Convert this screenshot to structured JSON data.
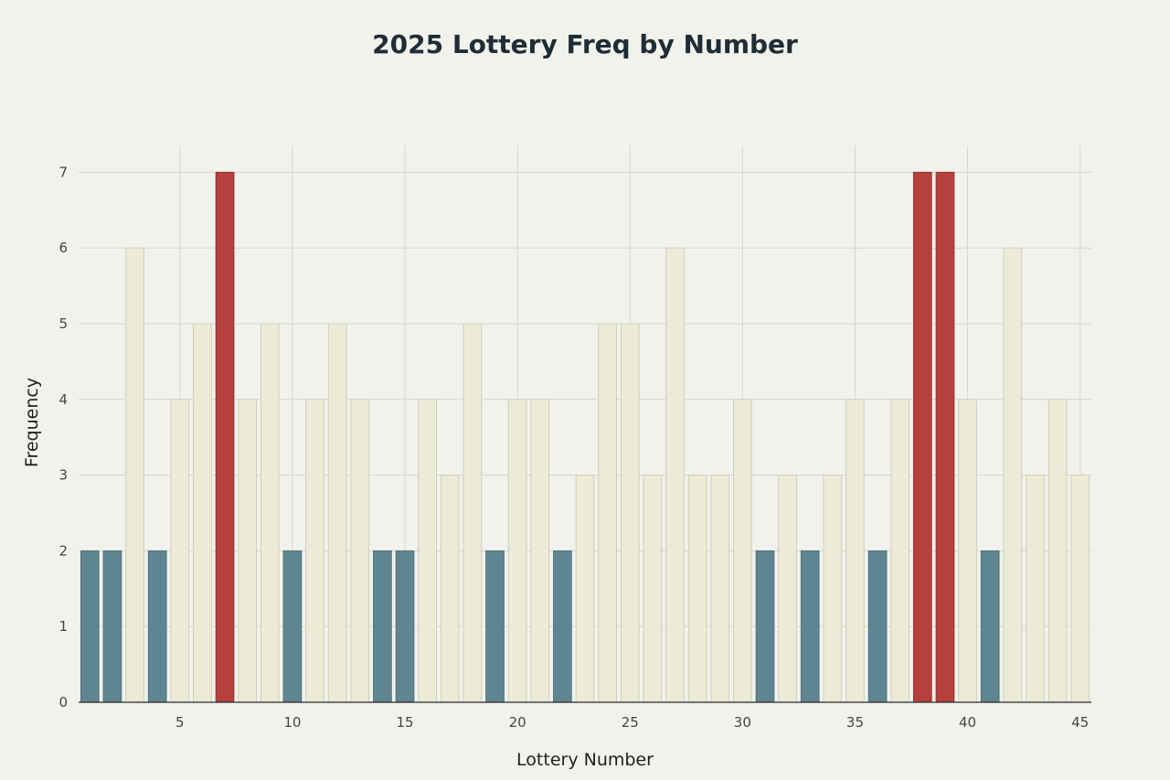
{
  "chart_data": {
    "type": "bar",
    "title": "2025 Lottery Freq by Number",
    "xlabel": "Lottery Number",
    "ylabel": "Frequency",
    "x": [
      1,
      2,
      3,
      4,
      5,
      6,
      7,
      8,
      9,
      10,
      11,
      12,
      13,
      14,
      15,
      16,
      17,
      18,
      19,
      20,
      21,
      22,
      23,
      24,
      25,
      26,
      27,
      28,
      29,
      30,
      31,
      32,
      33,
      34,
      35,
      36,
      37,
      38,
      39,
      40,
      41,
      42,
      43,
      44,
      45
    ],
    "values": [
      2,
      2,
      6,
      2,
      4,
      5,
      7,
      4,
      5,
      2,
      4,
      5,
      4,
      2,
      2,
      4,
      3,
      5,
      2,
      4,
      4,
      2,
      3,
      5,
      5,
      3,
      6,
      3,
      3,
      4,
      2,
      3,
      2,
      3,
      4,
      2,
      4,
      7,
      7,
      4,
      2,
      6,
      3,
      4,
      3
    ],
    "xlim": [
      0.5,
      45.5
    ],
    "ylim": [
      0,
      7.35
    ],
    "x_ticks": [
      5,
      10,
      15,
      20,
      25,
      30,
      35,
      40,
      45
    ],
    "y_ticks": [
      0,
      1,
      2,
      3,
      4,
      5,
      6,
      7
    ],
    "grid": true,
    "legend": "none",
    "colors": {
      "low": "#5f8690",
      "mid": "#ebebd6",
      "high": "#b5403c",
      "mid_stroke": "#cfcfbd",
      "low_stroke": "#4f747d",
      "high_stroke": "#963330",
      "grid": "#d5d5d0",
      "axis": "#2a2a2a"
    }
  }
}
